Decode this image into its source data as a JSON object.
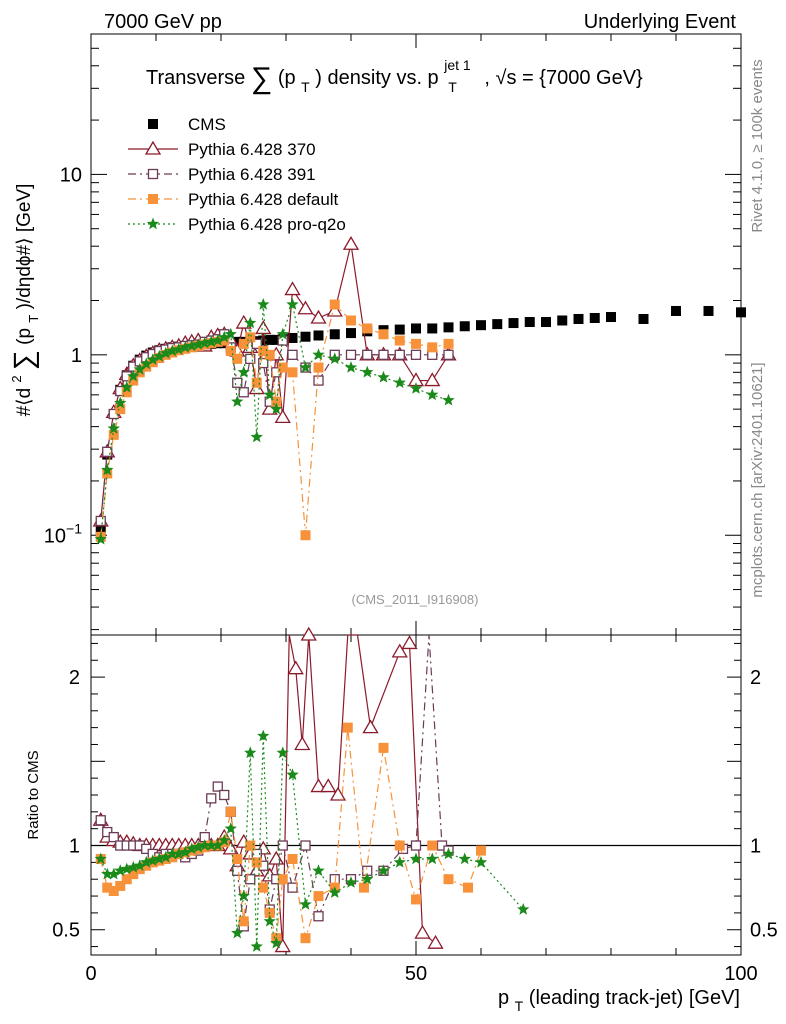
{
  "header": {
    "left": "7000 GeV pp",
    "right": "Underlying Event"
  },
  "side": {
    "rivet": "Rivet 4.1.0, ≥ 100k events",
    "mcplots": "mcplots.cern.ch [arXiv:2401.10621]"
  },
  "chart_data": {
    "type": "scatter",
    "title_parts": {
      "a": "Transverse",
      "sum": "∑",
      "b": "(p",
      "b_sub": "T",
      "c": ") density vs. p",
      "c_sup": "jet 1",
      "c_sub": "T",
      "d": ", √s = {7000 GeV}"
    },
    "analysis_label": "(CMS_2011_I916908)",
    "xlabel": {
      "main": "p",
      "sub": "T",
      "rest": " (leading track-jet) [GeV]"
    },
    "ylabel_top": {
      "a": "#⟨d",
      "sup2": "2",
      "sum": "∑",
      "b": "(p",
      "sub": "T",
      "c": ")/dηdϕ#⟩ [GeV]"
    },
    "ylabel_bottom": "Ratio to CMS",
    "xlim": [
      0,
      100
    ],
    "ylim_top": [
      0.028,
      60
    ],
    "ylim_bottom": [
      0.35,
      2.25
    ],
    "x_ticks": [
      "0",
      "50",
      "100"
    ],
    "y_ticks_top": [
      {
        "base": "10",
        "exp": "−1",
        "value": 0.1
      },
      {
        "base": "1",
        "exp": "",
        "value": 1
      },
      {
        "base": "10",
        "exp": "",
        "value": 10
      }
    ],
    "y_ticks_bottom": [
      "0.5",
      "1",
      "2"
    ],
    "legend": [
      {
        "label": "CMS",
        "color": "#000000",
        "marker": "square-filled",
        "line": "none"
      },
      {
        "label": "Pythia 6.428 370",
        "color": "#8b1a2b",
        "marker": "triangle-open",
        "line": "solid"
      },
      {
        "label": "Pythia 6.428 391",
        "color": "#6b3a55",
        "marker": "square-open",
        "line": "dashdot"
      },
      {
        "label": "Pythia 6.428 default",
        "color": "#f7923a",
        "marker": "square-filled",
        "line": "dashdot"
      },
      {
        "label": "Pythia 6.428 pro-q2o",
        "color": "#1a8a1a",
        "marker": "star",
        "line": "dotted"
      }
    ],
    "series": [
      {
        "name": "CMS",
        "x": [
          1.5,
          2.5,
          3.5,
          4.5,
          5.5,
          6.5,
          7.5,
          8.5,
          9.5,
          10.5,
          11.5,
          12.5,
          13.5,
          14.5,
          15.5,
          16.5,
          17.5,
          18.5,
          19.5,
          20.5,
          21.5,
          22.5,
          23.5,
          24.5,
          25.5,
          26.5,
          27.5,
          28.5,
          29.5,
          31.0,
          33.0,
          35.0,
          37.5,
          40.0,
          42.5,
          45.0,
          47.5,
          50.0,
          52.5,
          55.0,
          57.5,
          60.0,
          62.5,
          65.0,
          67.5,
          70.0,
          72.5,
          75.0,
          77.5,
          80.0,
          85.0,
          90.0,
          95.0,
          100.0
        ],
        "y": [
          0.105,
          0.28,
          0.47,
          0.64,
          0.77,
          0.87,
          0.94,
          0.99,
          1.03,
          1.06,
          1.08,
          1.1,
          1.11,
          1.12,
          1.13,
          1.14,
          1.15,
          1.15,
          1.16,
          1.16,
          1.17,
          1.18,
          1.18,
          1.19,
          1.19,
          1.2,
          1.21,
          1.21,
          1.22,
          1.24,
          1.26,
          1.28,
          1.3,
          1.32,
          1.35,
          1.37,
          1.38,
          1.4,
          1.4,
          1.42,
          1.44,
          1.46,
          1.48,
          1.5,
          1.52,
          1.52,
          1.55,
          1.58,
          1.6,
          1.62,
          1.58,
          1.75,
          1.75,
          1.72
        ]
      },
      {
        "name": "Pythia 6.428 370",
        "x": [
          1.5,
          2.5,
          3.5,
          4.5,
          5.5,
          6.5,
          7.5,
          8.5,
          9.5,
          10.5,
          11.5,
          12.5,
          13.5,
          14.5,
          15.5,
          16.5,
          17.5,
          18.5,
          19.5,
          20.5,
          21.5,
          22.5,
          23.5,
          24.5,
          25.5,
          26.5,
          27.5,
          28.5,
          29.5,
          31.0,
          33.0,
          35.0,
          37.5,
          40.0,
          42.5,
          45.0,
          47.5,
          50.0,
          52.5,
          55.0
        ],
        "y": [
          0.12,
          0.29,
          0.48,
          0.65,
          0.78,
          0.87,
          0.93,
          0.98,
          1.02,
          1.06,
          1.08,
          1.1,
          1.12,
          1.16,
          1.18,
          1.2,
          1.12,
          1.25,
          1.28,
          1.3,
          1.2,
          1.05,
          1.5,
          1.1,
          0.65,
          1.4,
          0.5,
          1.0,
          0.45,
          2.3,
          1.8,
          1.6,
          1.75,
          4.1,
          1.0,
          1.0,
          1.0,
          0.72,
          0.72,
          1.0
        ]
      },
      {
        "name": "Pythia 6.428 391",
        "x": [
          1.5,
          2.5,
          3.5,
          4.5,
          5.5,
          6.5,
          7.5,
          8.5,
          9.5,
          10.5,
          11.5,
          12.5,
          13.5,
          14.5,
          15.5,
          16.5,
          17.5,
          18.5,
          19.5,
          20.5,
          21.5,
          22.5,
          23.5,
          24.5,
          25.5,
          26.5,
          27.5,
          28.5,
          29.5,
          31.0,
          33.0,
          35.0,
          37.5,
          40.0,
          42.5,
          45.0,
          47.5,
          50.0,
          52.5,
          55.0
        ],
        "y": [
          0.12,
          0.29,
          0.47,
          0.63,
          0.76,
          0.86,
          0.92,
          0.97,
          1.01,
          1.05,
          1.07,
          1.09,
          1.1,
          1.12,
          1.13,
          1.14,
          1.18,
          1.2,
          1.22,
          1.3,
          1.1,
          0.7,
          0.62,
          0.95,
          1.15,
          0.9,
          0.55,
          0.8,
          1.2,
          1.0,
          0.85,
          0.72,
          1.0,
          1.0,
          1.0,
          1.0,
          1.0,
          1.0,
          1.0,
          1.0
        ]
      },
      {
        "name": "Pythia 6.428 default",
        "x": [
          1.5,
          2.5,
          3.5,
          4.5,
          5.5,
          6.5,
          7.5,
          8.5,
          9.5,
          10.5,
          11.5,
          12.5,
          13.5,
          14.5,
          15.5,
          16.5,
          17.5,
          18.5,
          19.5,
          20.5,
          21.5,
          22.5,
          23.5,
          24.5,
          25.5,
          26.5,
          27.5,
          28.5,
          29.5,
          31.0,
          33.0,
          35.0,
          37.5,
          40.0,
          42.5,
          45.0,
          47.5,
          50.0,
          52.5,
          55.0
        ],
        "y": [
          0.098,
          0.22,
          0.36,
          0.5,
          0.62,
          0.72,
          0.8,
          0.86,
          0.91,
          0.96,
          1.0,
          1.03,
          1.06,
          1.08,
          1.1,
          1.12,
          1.14,
          1.16,
          1.18,
          1.2,
          1.05,
          0.95,
          1.15,
          1.25,
          0.7,
          1.05,
          1.0,
          0.55,
          0.85,
          0.8,
          0.1,
          0.85,
          1.9,
          1.55,
          1.4,
          1.3,
          1.2,
          1.15,
          1.1,
          1.15
        ]
      },
      {
        "name": "Pythia 6.428 pro-q2o",
        "x": [
          1.5,
          2.5,
          3.5,
          4.5,
          5.5,
          6.5,
          7.5,
          8.5,
          9.5,
          10.5,
          11.5,
          12.5,
          13.5,
          14.5,
          15.5,
          16.5,
          17.5,
          18.5,
          19.5,
          20.5,
          21.5,
          22.5,
          23.5,
          24.5,
          25.5,
          26.5,
          27.5,
          28.5,
          29.5,
          31.0,
          33.0,
          35.0,
          37.5,
          40.0,
          42.5,
          45.0,
          47.5,
          50.0,
          52.5,
          55.0
        ],
        "y": [
          0.095,
          0.23,
          0.39,
          0.54,
          0.66,
          0.76,
          0.83,
          0.89,
          0.94,
          0.98,
          1.02,
          1.05,
          1.07,
          1.1,
          1.12,
          1.14,
          1.16,
          1.18,
          1.2,
          1.25,
          1.3,
          0.55,
          0.8,
          1.5,
          0.35,
          1.9,
          0.6,
          0.5,
          1.3,
          1.9,
          0.85,
          1.0,
          0.95,
          0.85,
          0.8,
          0.75,
          0.7,
          0.65,
          0.6,
          0.56
        ]
      }
    ],
    "ratios": [
      {
        "name": "Pythia 6.428 370",
        "x": [
          1.5,
          2.5,
          3.5,
          4.5,
          5.5,
          6.5,
          7.5,
          8.5,
          9.5,
          10.5,
          11.5,
          12.5,
          13.5,
          14.5,
          15.5,
          16.5,
          17.5,
          18.5,
          19.5,
          20.5,
          21.5,
          22.5,
          23.5,
          24.5,
          25.5,
          26.5,
          27.5,
          28.5,
          29.5,
          30.5,
          31.5,
          32.5,
          33.5,
          35.0,
          36.5,
          38.0,
          39.5,
          41.0,
          43.0,
          47.5,
          49.0,
          51.0,
          53.0
        ],
        "y": [
          1.15,
          1.05,
          1.03,
          1.02,
          1.02,
          1.01,
          1.0,
          1.0,
          1.0,
          1.0,
          1.0,
          1.0,
          1.0,
          1.0,
          1.0,
          1.0,
          1.02,
          1.0,
          1.0,
          1.05,
          0.98,
          0.88,
          1.02,
          0.95,
          0.85,
          0.98,
          0.82,
          0.92,
          0.4,
          2.3,
          2.05,
          1.6,
          2.25,
          1.35,
          1.35,
          1.3,
          2.4,
          2.4,
          1.7,
          2.15,
          2.2,
          0.48,
          0.42
        ]
      },
      {
        "name": "Pythia 6.428 391",
        "x": [
          1.5,
          2.5,
          3.5,
          4.5,
          5.5,
          6.5,
          7.5,
          8.5,
          9.5,
          10.5,
          11.5,
          12.5,
          13.5,
          14.5,
          15.5,
          16.5,
          17.5,
          18.5,
          19.5,
          20.5,
          21.5,
          22.5,
          23.5,
          24.5,
          25.5,
          26.5,
          27.5,
          28.5,
          29.5,
          31.0,
          33.0,
          35.0,
          37.5,
          40.0,
          42.5,
          45.0,
          48.0,
          50.0,
          52.0,
          54.0,
          55.0
        ],
        "y": [
          1.15,
          1.08,
          1.05,
          1.0,
          1.0,
          1.0,
          1.0,
          0.98,
          0.95,
          0.93,
          0.95,
          0.95,
          0.95,
          0.93,
          0.95,
          0.97,
          1.05,
          1.28,
          1.35,
          1.3,
          1.2,
          0.85,
          0.52,
          0.8,
          0.95,
          0.88,
          0.62,
          0.8,
          1.0,
          0.75,
          1.0,
          0.58,
          0.8,
          0.8,
          0.85,
          0.85,
          0.98,
          1.0,
          2.3,
          1.0,
          0.97
        ]
      },
      {
        "name": "Pythia 6.428 default",
        "x": [
          1.5,
          2.5,
          3.5,
          4.5,
          5.5,
          6.5,
          7.5,
          8.5,
          9.5,
          10.5,
          11.5,
          12.5,
          13.5,
          14.5,
          15.5,
          16.5,
          17.5,
          18.5,
          19.5,
          20.5,
          21.5,
          22.5,
          23.5,
          24.5,
          25.5,
          26.5,
          27.5,
          28.5,
          29.5,
          31.0,
          33.0,
          35.0,
          37.5,
          39.5,
          42.0,
          45.0,
          47.5,
          50.0,
          52.5,
          55.0,
          58.0,
          60.0
        ],
        "y": [
          0.92,
          0.75,
          0.73,
          0.76,
          0.8,
          0.83,
          0.86,
          0.88,
          0.9,
          0.91,
          0.92,
          0.93,
          0.95,
          0.96,
          0.97,
          0.98,
          0.99,
          1.0,
          1.0,
          1.02,
          1.2,
          0.92,
          0.55,
          1.0,
          0.9,
          0.75,
          0.6,
          0.45,
          0.8,
          0.92,
          0.45,
          0.7,
          0.75,
          1.7,
          0.75,
          1.58,
          1.0,
          0.68,
          1.0,
          0.8,
          0.75,
          0.97
        ]
      },
      {
        "name": "Pythia 6.428 pro-q2o",
        "x": [
          1.5,
          2.5,
          3.5,
          4.5,
          5.5,
          6.5,
          7.5,
          8.5,
          9.5,
          10.5,
          11.5,
          12.5,
          13.5,
          14.5,
          15.5,
          16.5,
          17.5,
          18.5,
          19.5,
          20.5,
          21.5,
          22.5,
          23.5,
          24.5,
          25.5,
          26.5,
          27.5,
          28.5,
          29.5,
          31.0,
          33.0,
          35.0,
          37.5,
          40.0,
          42.5,
          45.0,
          47.5,
          50.0,
          52.5,
          55.0,
          57.5,
          60.0,
          66.5
        ],
        "y": [
          0.92,
          0.83,
          0.83,
          0.85,
          0.86,
          0.87,
          0.88,
          0.9,
          0.91,
          0.92,
          0.93,
          0.95,
          0.95,
          0.96,
          0.98,
          0.99,
          1.0,
          1.0,
          1.0,
          1.03,
          1.1,
          0.48,
          0.7,
          1.55,
          0.4,
          1.65,
          0.55,
          0.42,
          1.55,
          1.42,
          0.65,
          0.85,
          0.72,
          0.78,
          0.8,
          0.85,
          0.9,
          0.92,
          0.92,
          0.95,
          0.92,
          0.9,
          0.62
        ]
      }
    ]
  }
}
